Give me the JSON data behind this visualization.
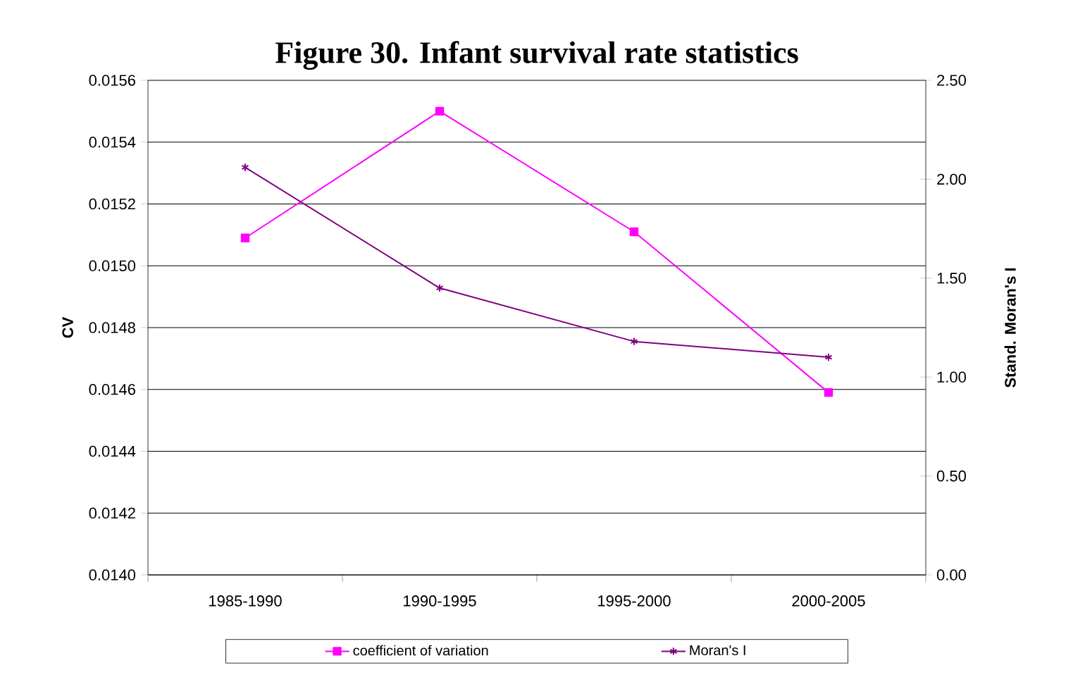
{
  "chart_data": {
    "type": "line",
    "title": "Figure 30. Infant survival rate statistics",
    "ylabel": "CV",
    "y2label": "Stand. Moran's I",
    "categories": [
      "1985-1990",
      "1990-1995",
      "1995-2000",
      "2000-2005"
    ],
    "series": [
      {
        "name": "coefficient of variation",
        "color": "#ff00ff",
        "marker": "square",
        "values": [
          0.01509,
          0.0155,
          0.01511,
          0.01459
        ]
      },
      {
        "name": "Moran's I",
        "color": "#800080",
        "marker": "cross",
        "axis": "y2",
        "values": [
          2.06,
          1.45,
          1.18,
          1.1
        ]
      }
    ],
    "ylim": [
      0.014,
      0.0156
    ],
    "yticks": [
      {
        "value": 0.014,
        "label": "0.0140"
      },
      {
        "value": 0.0142,
        "label": "0.0142"
      },
      {
        "value": 0.0144,
        "label": "0.0144"
      },
      {
        "value": 0.0146,
        "label": "0.0146"
      },
      {
        "value": 0.0148,
        "label": "0.0148"
      },
      {
        "value": 0.015,
        "label": "0.0150"
      },
      {
        "value": 0.0152,
        "label": "0.0152"
      },
      {
        "value": 0.0154,
        "label": "0.0154"
      },
      {
        "value": 0.0156,
        "label": "0.0156"
      }
    ],
    "y2lim": [
      0,
      2.5
    ],
    "y2ticks": [
      {
        "value": 0,
        "label": "0.00"
      },
      {
        "value": 0.5,
        "label": "0.50"
      },
      {
        "value": 1,
        "label": "1.00"
      },
      {
        "value": 1.5,
        "label": "1.50"
      },
      {
        "value": 2,
        "label": "2.00"
      },
      {
        "value": 2.5,
        "label": "2.50"
      }
    ],
    "grid": "y",
    "legend": "bottom",
    "line_style": "solid"
  }
}
